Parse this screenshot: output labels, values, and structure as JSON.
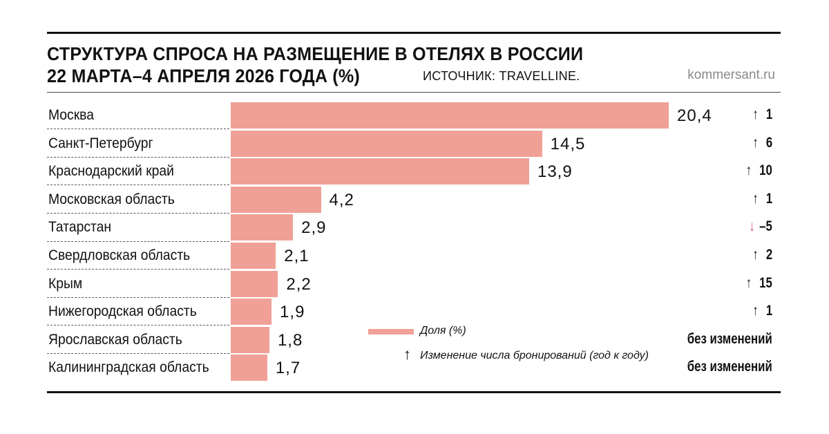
{
  "header": {
    "title_line1": "СТРУКТУРА СПРОСА НА РАЗМЕЩЕНИЕ В ОТЕЛЯХ В РОССИИ",
    "title_line2": "22 МАРТА–4 АПРЕЛЯ 2026 ГОДА (%)",
    "source": "ИСТОЧНИК: TRAVELLINE.",
    "brand": "kommersant.ru"
  },
  "legend": {
    "share_label": "Доля (%)",
    "change_label": "Изменение числа бронирований (год к году)",
    "arrow_icon": "arrow-up-icon"
  },
  "colors": {
    "bar": "#f0a096",
    "down_arrow": "#d7506c",
    "text": "#111111"
  },
  "chart_data": {
    "type": "bar",
    "orientation": "horizontal",
    "title": "СТРУКТУРА СПРОСА НА РАЗМЕЩЕНИЕ В ОТЕЛЯХ В РОССИИ 22 МАРТА–4 АПРЕЛЯ 2026 ГОДА (%)",
    "categories": [
      "Москва",
      "Санкт-Петербург",
      "Краснодарский край",
      "Московская область",
      "Татарстан",
      "Свердловская область",
      "Крым",
      "Нижегородская область",
      "Ярославская область",
      "Калининградская область"
    ],
    "values": [
      20.4,
      14.5,
      13.9,
      4.2,
      2.9,
      2.1,
      2.2,
      1.9,
      1.8,
      1.7
    ],
    "value_labels": [
      "20,4",
      "14,5",
      "13,9",
      "4,2",
      "2,9",
      "2,1",
      "2,2",
      "1,9",
      "1,8",
      "1,7"
    ],
    "changes": [
      {
        "direction": "up",
        "text": "1"
      },
      {
        "direction": "up",
        "text": "6"
      },
      {
        "direction": "up",
        "text": "10"
      },
      {
        "direction": "up",
        "text": "1"
      },
      {
        "direction": "down",
        "text": "–5"
      },
      {
        "direction": "up",
        "text": "2"
      },
      {
        "direction": "up",
        "text": "15"
      },
      {
        "direction": "up",
        "text": "1"
      },
      {
        "direction": "none",
        "text": "без изменений"
      },
      {
        "direction": "none",
        "text": "без изменений"
      }
    ],
    "xlim": [
      0,
      20.4
    ],
    "series_name": "Доля (%)",
    "change_series_name": "Изменение числа бронирований (год к году)"
  }
}
